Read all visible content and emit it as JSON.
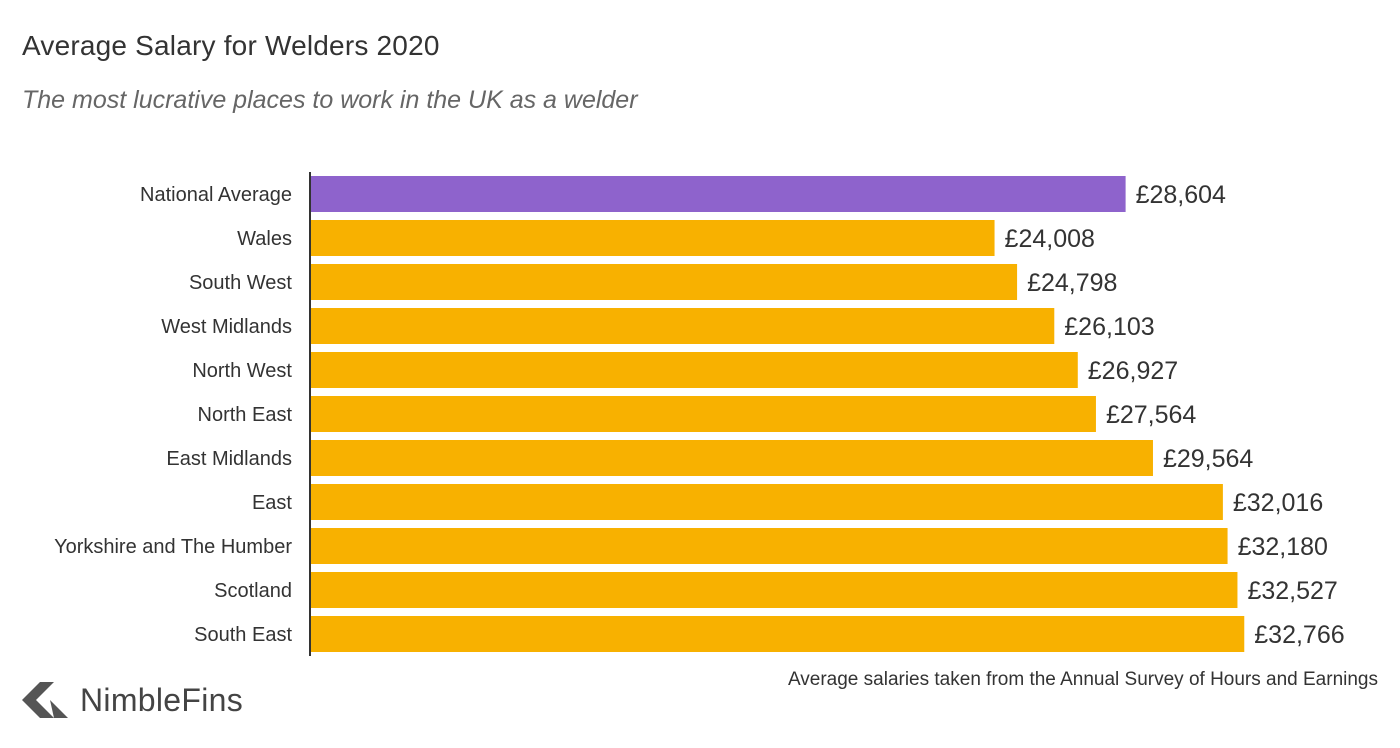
{
  "colors": {
    "highlight": "#8e63cc",
    "bar": "#f8b100",
    "axis": "#333333"
  },
  "logo": {
    "icon": "nimblefins-chevron-icon",
    "text": "NimbleFins"
  },
  "source_note": "Average salaries taken from the Annual Survey of Hours and Earnings",
  "chart_data": {
    "type": "bar",
    "orientation": "horizontal",
    "title": "Average Salary for Welders 2020",
    "subtitle": "The most lucrative places to work in the UK as a welder",
    "xlabel": "",
    "ylabel": "",
    "grid": false,
    "xlim": [
      0,
      37000
    ],
    "categories": [
      "National Average",
      "Wales",
      "South West",
      "West Midlands",
      "North West",
      "North East",
      "East Midlands",
      "East",
      "Yorkshire and The Humber",
      "Scotland",
      "South East"
    ],
    "values": [
      28604,
      24008,
      24798,
      26103,
      26927,
      27564,
      29564,
      32016,
      32180,
      32527,
      32766
    ],
    "value_labels": [
      "£28,604",
      "£24,008",
      "£24,798",
      "£26,103",
      "£26,927",
      "£27,564",
      "£29,564",
      "£32,016",
      "£32,180",
      "£32,527",
      "£32,766"
    ],
    "highlight_category": "National Average"
  }
}
